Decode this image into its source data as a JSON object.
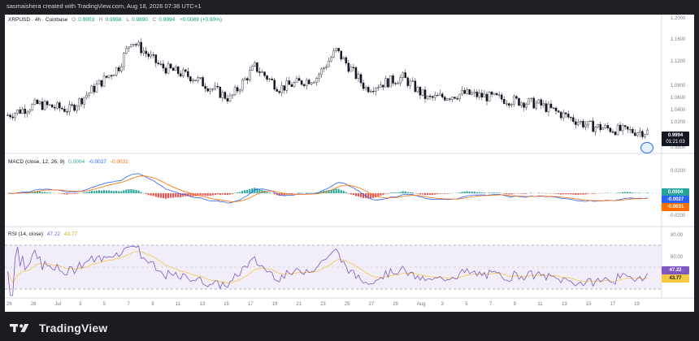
{
  "header": {
    "created_by": "sasmaishera created with TradingView.com, Aug 18, 2026 07:38 UTC+1"
  },
  "main_pane": {
    "symbol": "XRPUSD · 4h · Coinbase",
    "ohlc": {
      "o_label": "O",
      "o": "0.9903",
      "h_label": "H",
      "h": "0.9998",
      "l_label": "L",
      "l": "0.9890",
      "c_label": "C",
      "c": "0.9994",
      "change": "+0.0089 (+0.90%)"
    },
    "price_ticks": [
      "1.2000",
      "1.1600",
      "1.1200",
      "1.0800",
      "1.0600",
      "1.0400",
      "1.0200",
      "0.9800"
    ],
    "last_price": "0.9994",
    "countdown": "01:21:03"
  },
  "macd_pane": {
    "title": "MACD (close, 12, 26, 9)",
    "hist": "0.0004",
    "macd": "-0.0027",
    "signal": "-0.0031",
    "ticks": [
      "0.0200",
      "-0.0200"
    ],
    "tags": [
      "0.0004",
      "-0.0027",
      "-0.0031"
    ]
  },
  "rsi_pane": {
    "title": "RSI (14, close)",
    "rsi": "47.22",
    "ma": "43.77",
    "ticks": [
      "80.00",
      "60.00"
    ],
    "tags": [
      "47.22",
      "43.77"
    ]
  },
  "time_axis": {
    "labels": [
      "26",
      "28",
      "Jul",
      "3",
      "5",
      "7",
      "9",
      "11",
      "13",
      "15",
      "17",
      "19",
      "21",
      "23",
      "25",
      "27",
      "29",
      "Aug",
      "3",
      "5",
      "7",
      "9",
      "11",
      "13",
      "15",
      "17",
      "19"
    ]
  },
  "footer": {
    "brand": "TradingView"
  },
  "colors": {
    "up": "#26a69a",
    "down": "#ef5350",
    "macd": "#2962ff",
    "signal": "#ff6d00",
    "rsi": "#7e57c2",
    "rsi_ma": "#f5c842",
    "price_tag": "#131722"
  }
}
